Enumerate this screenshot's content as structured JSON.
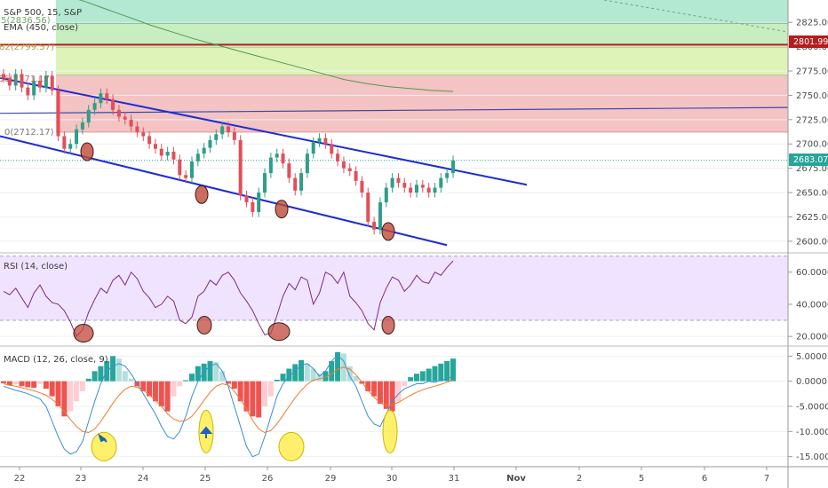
{
  "chart_data": {
    "type": "candlestick",
    "timeframe": "15",
    "colors": {
      "up": "#2e9e87",
      "down": "#e0505a",
      "ema": "#4e9a4e",
      "channel": "#1d2bd6",
      "hline": "#3949ab",
      "rsi": "#7b2a8b",
      "macd": "#3a8ed8",
      "signal": "#f07a2a",
      "circle": "#c0473a",
      "hl": "#ffeb3b"
    },
    "price": {
      "title": "S&P 500, 15, S&P",
      "ema_label": "EMA (450, close)",
      "ylim": [
        2588,
        2848
      ],
      "y_ticks": [
        "2825.00",
        "2800.00",
        "2775.00",
        "2750.00",
        "2725.00",
        "2700.00",
        "2675.00",
        "2650.00",
        "2625.00",
        "2600.00"
      ],
      "fib_labels": [
        ").5(2836.56)",
        "82(2799.57)",
        "56(2771.17)",
        "0(2712.17)"
      ],
      "fib_zones": [
        {
          "from": 2824,
          "to": 2848,
          "color": "#b3e8d3"
        },
        {
          "from": 2799.5,
          "to": 2824,
          "color": "#c8edc0"
        },
        {
          "from": 2771,
          "to": 2799.5,
          "color": "#def3b8"
        },
        {
          "from": 2712.2,
          "to": 2771,
          "color": "#f4c3c3"
        }
      ],
      "red_line": 2801.99,
      "red_tag": "2801.99",
      "last_price": 2683.07,
      "last_tag": "2683.07",
      "hline_from": 2731.5,
      "hline_to": 2737.5,
      "closes": [
        2768,
        2760,
        2772,
        2758,
        2750,
        2765,
        2758,
        2770,
        2755,
        2708,
        2695,
        2700,
        2715,
        2722,
        2735,
        2742,
        2752,
        2746,
        2735,
        2728,
        2725,
        2718,
        2712,
        2708,
        2700,
        2695,
        2688,
        2692,
        2684,
        2668,
        2665,
        2682,
        2690,
        2696,
        2704,
        2710,
        2718,
        2712,
        2704,
        2647,
        2640,
        2630,
        2650,
        2670,
        2686,
        2690,
        2680,
        2665,
        2652,
        2670,
        2690,
        2702,
        2706,
        2700,
        2690,
        2682,
        2675,
        2672,
        2662,
        2650,
        2620,
        2612,
        2640,
        2655,
        2665,
        2660,
        2655,
        2650,
        2658,
        2655,
        2650,
        2655,
        2665,
        2670,
        2683
      ],
      "ema": [
        2872,
        2866,
        2860,
        2853,
        2846,
        2838,
        2830,
        2822,
        2815,
        2808,
        2802,
        2796,
        2790,
        2784,
        2778,
        2772,
        2766,
        2762,
        2759,
        2757,
        2755,
        2754
      ],
      "channel_upper": [
        2768,
        2658
      ],
      "channel_lower": [
        2708,
        2596
      ],
      "circles": [
        2692,
        2648,
        2633,
        2610
      ]
    },
    "rsi": {
      "label": "RSI (14, close)",
      "ylim": [
        14,
        72
      ],
      "y_ticks": [
        "60.0000",
        "40.0000",
        "20.0000"
      ],
      "band": [
        30,
        70
      ],
      "values": [
        48,
        46,
        50,
        44,
        38,
        47,
        52,
        45,
        41,
        40,
        36,
        29,
        20,
        24,
        35,
        43,
        50,
        47,
        55,
        58,
        52,
        60,
        56,
        48,
        44,
        38,
        40,
        45,
        42,
        30,
        28,
        32,
        45,
        48,
        55,
        52,
        58,
        60,
        55,
        47,
        42,
        36,
        28,
        21,
        22,
        33,
        45,
        53,
        49,
        57,
        55,
        40,
        47,
        60,
        58,
        53,
        60,
        45,
        41,
        36,
        28,
        24,
        41,
        50,
        57,
        55,
        48,
        52,
        58,
        54,
        53,
        60,
        58,
        63,
        67
      ],
      "circles": [
        22,
        27,
        23,
        27
      ]
    },
    "macd": {
      "label": "MACD (12, 26, close, 9)",
      "ylim": [
        -17,
        7
      ],
      "y_ticks": [
        "5.0000",
        "0.0000",
        "-5.0000",
        "-10.0000",
        "-15.0000"
      ],
      "hist": [
        -0.4,
        -0.8,
        -0.6,
        -1.0,
        -1.2,
        -1.3,
        -0.5,
        -1.5,
        -3,
        -5,
        -7,
        -6,
        -4,
        -2,
        0.5,
        2,
        3,
        4,
        5,
        4.5,
        2,
        0.5,
        -1,
        -2,
        -3,
        -4,
        -5,
        -6,
        -3,
        -1,
        0.2,
        1.5,
        3,
        3.5,
        4,
        3.8,
        2,
        -0.5,
        -1.5,
        -4,
        -6,
        -7,
        -7.2,
        -5,
        -3,
        0.3,
        1.5,
        2.5,
        3.4,
        4.2,
        3.5,
        2.5,
        1.5,
        2,
        4,
        5.8,
        5.5,
        3,
        1,
        -0.5,
        -2,
        -3,
        -4.5,
        -5.5,
        -6,
        -4,
        -1,
        0.8,
        1.5,
        2,
        2.5,
        3,
        3.5,
        4,
        4.5
      ],
      "macd_line": [
        -1,
        -1.4,
        -1.8,
        -2.1,
        -2.5,
        -3,
        -3.5,
        -5,
        -8,
        -11,
        -13.5,
        -14.5,
        -14,
        -12,
        -8,
        -4,
        -0.5,
        2,
        3,
        3.5,
        3,
        1.5,
        -0.5,
        -2.5,
        -4.5,
        -6.5,
        -9,
        -11,
        -11.5,
        -10,
        -7,
        -3,
        0,
        2,
        3,
        3.5,
        2,
        -1,
        -5,
        -9,
        -13,
        -15,
        -14.5,
        -11,
        -7,
        -3,
        -0.5,
        1,
        2,
        3.2,
        3.5,
        2.5,
        1,
        2,
        4,
        5.2,
        4,
        1,
        -1,
        -4,
        -7,
        -8.5,
        -9,
        -6.5,
        -4,
        -2.5,
        -1.5,
        -1,
        -0.5,
        -0.5,
        0,
        -0.2,
        0.2,
        0.5,
        1
      ],
      "signal_line": [
        -0.5,
        -0.8,
        -1,
        -1.3,
        -1.6,
        -1.9,
        -2.3,
        -2.8,
        -3.6,
        -4.6,
        -6,
        -7.6,
        -9,
        -10,
        -10.2,
        -9.5,
        -8,
        -6.2,
        -4.4,
        -2.8,
        -1.6,
        -1,
        -1.2,
        -1.8,
        -2.7,
        -3.8,
        -5,
        -6.5,
        -7.5,
        -8,
        -7.8,
        -7,
        -5.5,
        -3.8,
        -2.2,
        -1,
        -0.5,
        -0.8,
        -2,
        -3.6,
        -5.5,
        -7.8,
        -9.5,
        -10.2,
        -9.8,
        -8.5,
        -6.8,
        -5,
        -3.3,
        -1.8,
        -0.6,
        0.2,
        0.5,
        0.8,
        1.5,
        2.4,
        2.8,
        2.4,
        1.3,
        -0.2,
        -1.8,
        -3.2,
        -4.3,
        -4.8,
        -4.7,
        -4.2,
        -3.5,
        -2.8,
        -2.2,
        -1.7,
        -1.3,
        -1,
        -0.6,
        -0.2,
        0.2
      ],
      "ellipses": [
        -13,
        -10,
        -13,
        -10
      ]
    },
    "x_axis": {
      "ticks": [
        "22",
        "23",
        "24",
        "25",
        "26",
        "29",
        "30",
        "31",
        "Nov",
        "2",
        "5",
        "6",
        "7"
      ],
      "bold": [
        "Nov"
      ]
    }
  }
}
